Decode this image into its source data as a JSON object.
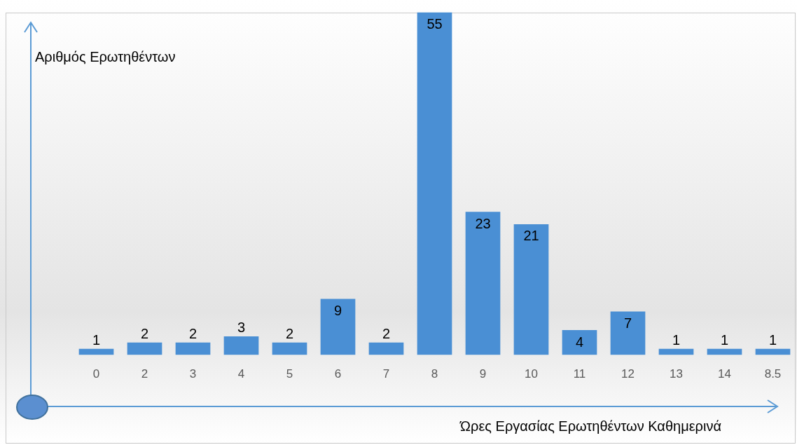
{
  "chart_data": {
    "type": "bar",
    "xlabel": "Ώρες Εργασίας Ερωτηθέντων Καθημερινά",
    "ylabel": "Αριθμός Ερωτηθέντων",
    "categories": [
      "0",
      "2",
      "3",
      "4",
      "5",
      "6",
      "7",
      "8",
      "9",
      "10",
      "11",
      "12",
      "13",
      "14",
      "8.5"
    ],
    "values": [
      1,
      2,
      2,
      3,
      2,
      9,
      2,
      55,
      23,
      21,
      4,
      7,
      1,
      1,
      1
    ],
    "color": "#4a8fd4",
    "ylim": [
      0,
      57
    ],
    "tick_labels": "x",
    "data_labels": true,
    "grid": false,
    "legend": false
  }
}
